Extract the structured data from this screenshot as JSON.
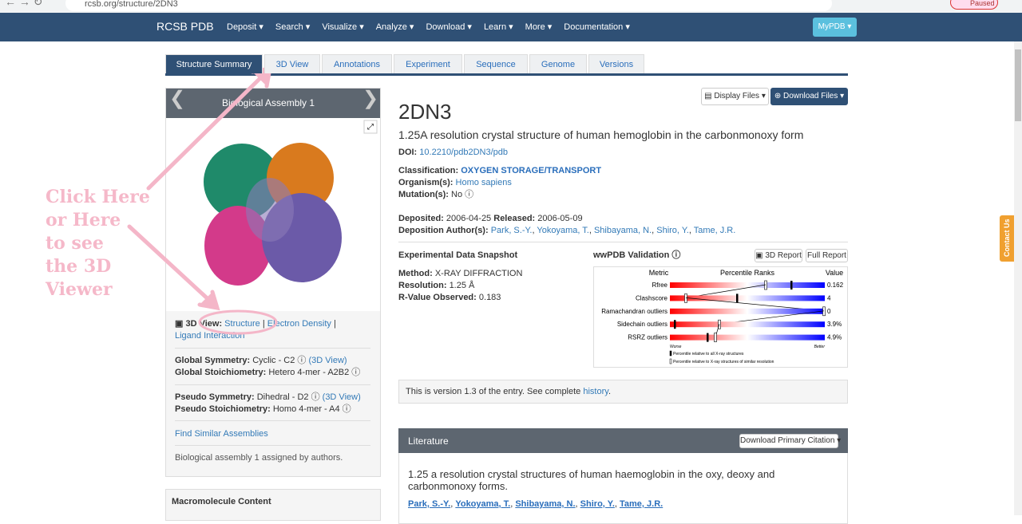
{
  "browser": {
    "url": "rcsb.org/structure/2DN3",
    "profile": "Paused"
  },
  "nav": {
    "brand": "RCSB PDB",
    "menu": [
      "Deposit",
      "Search",
      "Visualize",
      "Analyze",
      "Download",
      "Learn",
      "More",
      "Documentation"
    ],
    "mypdb": "MyPDB"
  },
  "tabs": [
    "Structure Summary",
    "3D View",
    "Annotations",
    "Experiment",
    "Sequence",
    "Genome",
    "Versions"
  ],
  "assembly": {
    "title": "Biological Assembly 1",
    "view_label": "3D View:",
    "links": [
      "Structure",
      "Electron Density",
      "Ligand Interaction"
    ],
    "separator": "|",
    "global_symmetry": {
      "label": "Global Symmetry:",
      "value": "Cyclic - C2",
      "link": "(3D View)"
    },
    "global_stoichiometry": {
      "label": "Global Stoichiometry:",
      "value": "Hetero 4-mer - A2B2"
    },
    "pseudo_symmetry": {
      "label": "Pseudo Symmetry:",
      "value": "Dihedral - D2",
      "link": "(3D View)"
    },
    "pseudo_stoichiometry": {
      "label": "Pseudo Stoichiometry:",
      "value": "Homo 4-mer - A4"
    },
    "find_similar": "Find Similar Assemblies",
    "note": "Biological assembly 1 assigned by authors."
  },
  "macromolecule": {
    "title": "Macromolecule Content"
  },
  "entry": {
    "display_files": "Display Files",
    "download_files": "Download Files",
    "id": "2DN3",
    "title": "1.25A resolution crystal structure of human hemoglobin in the carbonmonoxy form",
    "doi": {
      "label": "DOI:",
      "value": "10.2210/pdb2DN3/pdb"
    },
    "classification": {
      "label": "Classification:",
      "value": "OXYGEN STORAGE/TRANSPORT"
    },
    "organism": {
      "label": "Organism(s):",
      "value": "Homo sapiens"
    },
    "mutation": {
      "label": "Mutation(s):",
      "value": "No"
    },
    "deposited": {
      "label": "Deposited:",
      "value": "2006-04-25"
    },
    "released": {
      "label": "Released:",
      "value": "2006-05-09"
    },
    "authors": {
      "label": "Deposition Author(s):",
      "names": [
        "Park, S.-Y.",
        "Yokoyama, T.",
        "Shibayama, N.",
        "Shiro, Y.",
        "Tame, J.R."
      ],
      "separator": ","
    }
  },
  "experiment": {
    "title": "Experimental Data Snapshot",
    "method": {
      "label": "Method:",
      "value": "X-RAY DIFFRACTION"
    },
    "resolution": {
      "label": "Resolution:",
      "value": "1.25 Å"
    },
    "rvalue": {
      "label": "R-Value Observed:",
      "value": "0.183"
    }
  },
  "validation": {
    "title": "wwPDB Validation",
    "report_3d": "3D Report",
    "full_report": "Full Report",
    "headers": [
      "Metric",
      "Percentile Ranks",
      "Value"
    ],
    "metrics": [
      {
        "name": "Rfree",
        "value": "0.162"
      },
      {
        "name": "Clashscore",
        "value": "4"
      },
      {
        "name": "Ramachandran outliers",
        "value": "0"
      },
      {
        "name": "Sidechain outliers",
        "value": "3.9%"
      },
      {
        "name": "RSRZ outliers",
        "value": "4.9%"
      }
    ],
    "worse": "Worse",
    "better": "Better",
    "legend": [
      "Percentile relative to all X-ray structures",
      "Percentile relative to X-ray structures of similar resolution"
    ]
  },
  "version": {
    "text": "This is version 1.3 of the entry. See complete",
    "link": "history",
    "end": "."
  },
  "literature": {
    "title": "Literature",
    "download": "Download Primary Citation",
    "citation_title": "1.25 a resolution crystal structures of human haemoglobin in the oxy, deoxy and carbonmonoxy forms.",
    "authors": [
      "Park, S.-Y.",
      "Yokoyama, T.",
      "Shibayama, N.",
      "Shiro, Y.",
      "Tame, J.R."
    ],
    "separator": ","
  },
  "annotation": {
    "lines": [
      "Click Here",
      "or Here",
      "to see",
      "the 3D",
      "Viewer"
    ]
  },
  "contact": "Contact Us"
}
